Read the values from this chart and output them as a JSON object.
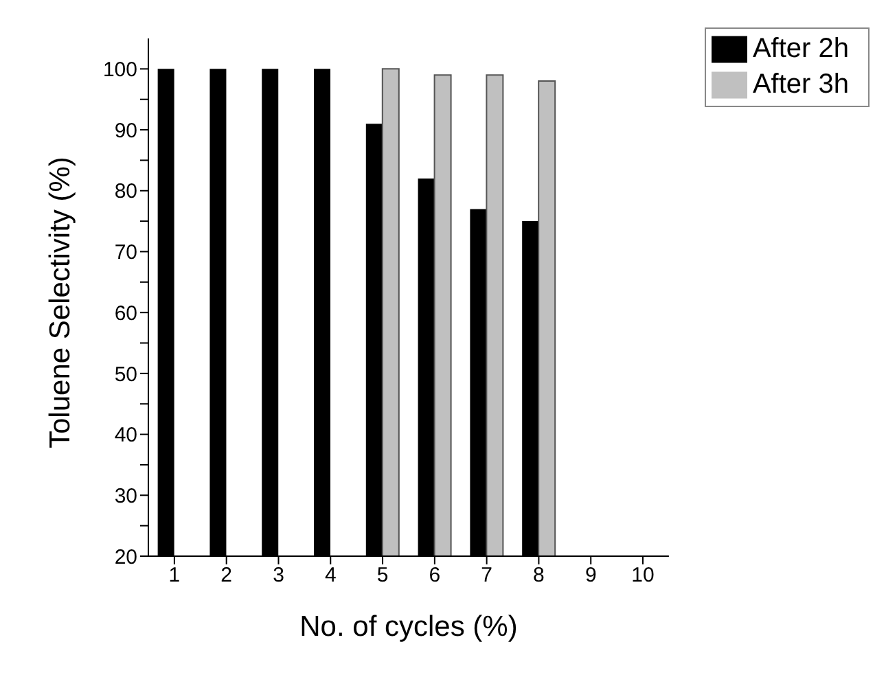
{
  "chart_data": {
    "type": "bar",
    "xlabel": "No. of cycles (%)",
    "ylabel": "Toluene Selectivity (%)",
    "categories": [
      "1",
      "2",
      "3",
      "4",
      "5",
      "6",
      "7",
      "8",
      "9",
      "10"
    ],
    "series": [
      {
        "name": "After 2h",
        "color": "#000000",
        "values": [
          100,
          100,
          100,
          100,
          91,
          82,
          77,
          75,
          null,
          null
        ]
      },
      {
        "name": "After 3h",
        "color": "#c0c0c0",
        "values": [
          null,
          null,
          null,
          null,
          100,
          99,
          99,
          98,
          null,
          null
        ]
      }
    ],
    "ylim": [
      20,
      105
    ],
    "yticks": [
      20,
      {
        "value": 25,
        "label": null
      },
      30,
      {
        "value": 35,
        "label": null
      },
      40,
      {
        "value": 45,
        "label": null
      },
      50,
      {
        "value": 55,
        "label": null
      },
      60,
      {
        "value": 65,
        "label": null
      },
      70,
      {
        "value": 75,
        "label": null
      },
      80,
      {
        "value": 85,
        "label": null
      },
      90,
      {
        "value": 95,
        "label": null
      },
      100
    ],
    "grid": false,
    "legend": "top right"
  }
}
